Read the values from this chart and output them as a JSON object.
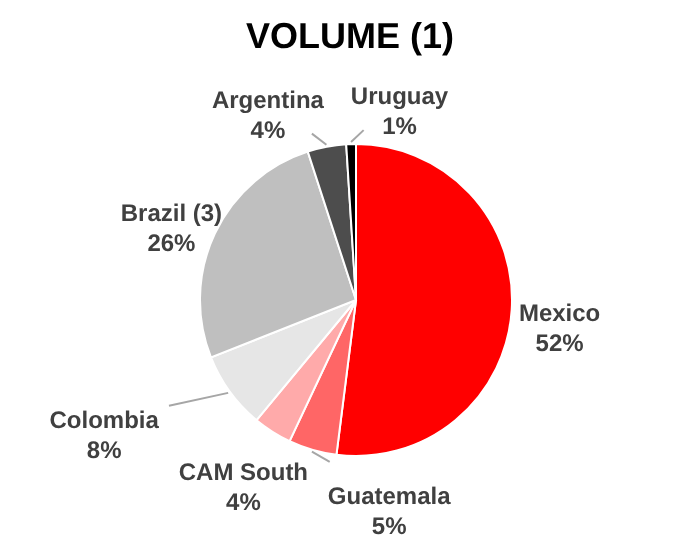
{
  "chart_data": {
    "type": "pie",
    "title": "VOLUME (1)",
    "categories": [
      "Mexico",
      "Guatemala",
      "CAM South",
      "Colombia",
      "Brazil (3)",
      "Argentina",
      "Uruguay"
    ],
    "values": [
      52,
      5,
      4,
      8,
      26,
      4,
      1
    ],
    "value_labels": [
      "52%",
      "5%",
      "4%",
      "8%",
      "26%",
      "4%",
      "1%"
    ],
    "colors": [
      "#ff0000",
      "#ff6666",
      "#ffaaaa",
      "#e6e6e6",
      "#bfbfbf",
      "#4d4d4d",
      "#000000"
    ]
  }
}
